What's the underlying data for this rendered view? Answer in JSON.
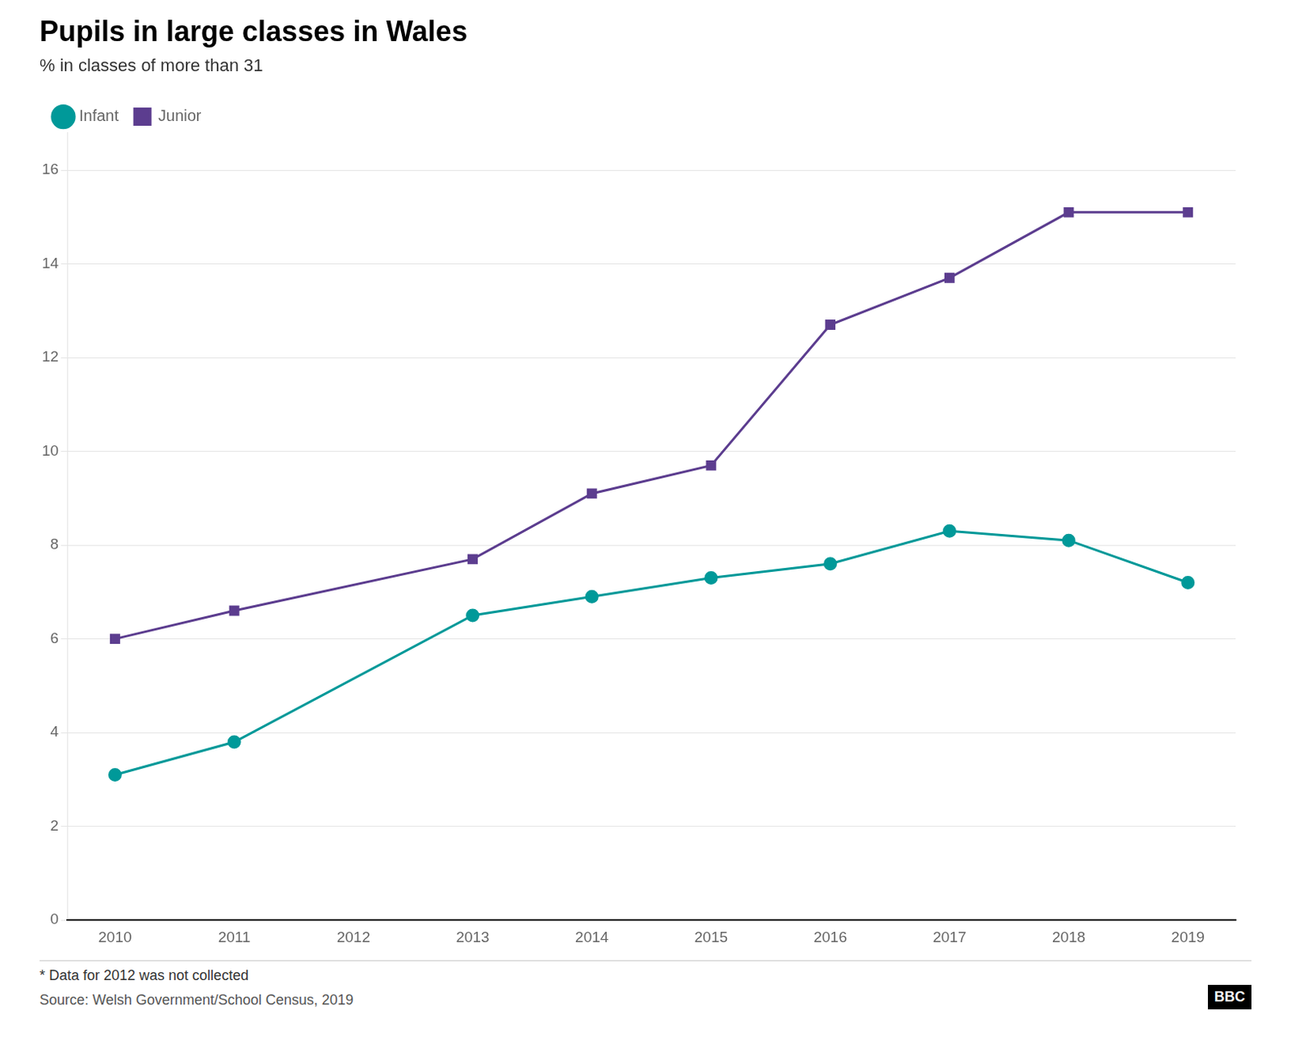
{
  "chart_data": {
    "type": "line",
    "title": "Pupils in large classes in Wales",
    "subtitle": "% in classes of more than 31",
    "annotations": [
      "* Data for 2012 was not collected",
      "Source: Welsh Government/School Census, 2019",
      "BBC"
    ],
    "x": [
      2010,
      2011,
      2013,
      2014,
      2015,
      2016,
      2017,
      2018,
      2019
    ],
    "series": [
      {
        "name": "Infant",
        "color": "#009999",
        "marker": "circle",
        "values": [
          3.1,
          3.8,
          6.5,
          6.9,
          7.3,
          7.6,
          8.3,
          8.1,
          7.2
        ]
      },
      {
        "name": "Junior",
        "color": "#5c3d8f",
        "marker": "square",
        "values": [
          6.0,
          6.6,
          7.7,
          9.1,
          9.7,
          12.7,
          13.7,
          15.1,
          15.1
        ]
      }
    ],
    "xlim": [
      2009.6,
      2019.4
    ],
    "xticks": [
      2010,
      2011,
      2012,
      2013,
      2014,
      2015,
      2016,
      2017,
      2018,
      2019
    ],
    "ylim": [
      0,
      16.8
    ],
    "yticks": [
      0,
      2,
      4,
      6,
      8,
      10,
      12,
      14,
      16
    ],
    "grid": "y",
    "legend": "upper left"
  }
}
